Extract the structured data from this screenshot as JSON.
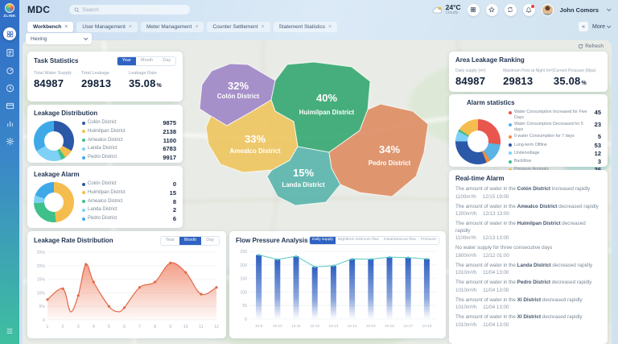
{
  "app": {
    "logo_text": "ZLINK",
    "title": "MDC",
    "search_placeholder": "Search"
  },
  "header": {
    "weather": {
      "temp": "24°C",
      "condition": "Cloudy"
    },
    "icons": [
      "apps-grid",
      "star",
      "sync",
      "notifications"
    ],
    "user": {
      "name": "John Comors"
    }
  },
  "sidebar": {
    "items": [
      {
        "icon": "dashboard",
        "active": true
      },
      {
        "icon": "tasks"
      },
      {
        "icon": "meter"
      },
      {
        "icon": "history"
      },
      {
        "icon": "billing"
      },
      {
        "icon": "reports"
      },
      {
        "icon": "settings"
      }
    ]
  },
  "tabs": {
    "items": [
      {
        "label": "Workbench"
      },
      {
        "label": "User Management"
      },
      {
        "label": "Meter Management"
      },
      {
        "label": "Counter Settlement"
      },
      {
        "label": "Statement Statistics"
      }
    ],
    "active": "Workbench",
    "more_label": "More"
  },
  "toolbar": {
    "region_select_value": "Hexing",
    "refresh_label": "Refresh"
  },
  "task_statistics": {
    "title": "Task Statistics",
    "range_options": [
      "Year",
      "Month",
      "Day"
    ],
    "range_active": "Year",
    "stats": [
      {
        "label": "Total Water Supply",
        "value": "84987",
        "unit": ""
      },
      {
        "label": "Total Leakage",
        "value": "29813",
        "unit": ""
      },
      {
        "label": "Leakage Rate",
        "value": "35.08",
        "unit": "%"
      }
    ]
  },
  "leakage_distribution": {
    "title": "Leakage Distribution",
    "items": [
      {
        "label": "Colón District",
        "value": 9875,
        "color": "#2b59a8"
      },
      {
        "label": "Huimilpan District",
        "value": 2138,
        "color": "#f5bd4e"
      },
      {
        "label": "Amealco District",
        "value": 1100,
        "color": "#3ec08a"
      },
      {
        "label": "Landa District",
        "value": 6783,
        "color": "#7fd0f5"
      },
      {
        "label": "Pedro District",
        "value": 9917,
        "color": "#3fa9e8"
      }
    ]
  },
  "leakage_alarm": {
    "title": "Leakage Alarm",
    "items": [
      {
        "label": "Colón District",
        "value": 0,
        "color": "#2b59a8"
      },
      {
        "label": "Huimilpan District",
        "value": 15,
        "color": "#f5bd4e"
      },
      {
        "label": "Amealco District",
        "value": 8,
        "color": "#3ec08a"
      },
      {
        "label": "Landa District",
        "value": 2,
        "color": "#7fd0f5"
      },
      {
        "label": "Pedro District",
        "value": 6,
        "color": "#3fa9e8"
      }
    ]
  },
  "map": {
    "districts": [
      {
        "name": "Colón District",
        "pct": "32%",
        "color": "#9c83c6"
      },
      {
        "name": "Huimilpan District",
        "pct": "40%",
        "color": "#2fa56d"
      },
      {
        "name": "Amealco District",
        "pct": "33%",
        "color": "#eec45a"
      },
      {
        "name": "Landa District",
        "pct": "15%",
        "color": "#54b3aa"
      },
      {
        "name": "Pedro District",
        "pct": "34%",
        "color": "#dd8a5f"
      }
    ]
  },
  "area_leakage_ranking": {
    "title": "Area Leakage Ranking",
    "stats": [
      {
        "label": "Daily supply (m³)",
        "value": "84987",
        "unit": ""
      },
      {
        "label": "Maximum Flow at Night (m³)",
        "value": "29813",
        "unit": ""
      },
      {
        "label": "Current Pressure (Mpa)",
        "value": "35.08",
        "unit": "%"
      }
    ]
  },
  "alarm_statistics": {
    "title": "Alarm statistics",
    "items": [
      {
        "label": "Water Consumption Increased for Five Days",
        "value": 45,
        "color": "#e8564e"
      },
      {
        "label": "Water Consumption Decreased for 5 days",
        "value": 23,
        "color": "#5ab4e5"
      },
      {
        "label": "0 water Consumption for 7 days",
        "value": 5,
        "color": "#f08c3c"
      },
      {
        "label": "Long-term Offline",
        "value": 53,
        "color": "#2b59a8"
      },
      {
        "label": "Undervoltage",
        "value": 12,
        "color": "#7fd0f5"
      },
      {
        "label": "Backflow",
        "value": 3,
        "color": "#3ec08a"
      },
      {
        "label": "Pressure Anomaly",
        "value": 26,
        "color": "#f5bd4e"
      }
    ]
  },
  "realtime_alarm": {
    "title": "Real-time Alarm",
    "items": [
      {
        "prefix": "The amount of water in the ",
        "district": "Colón District",
        "suffix": " increased rapidly",
        "flow": "1100m³/h",
        "time": "12/15 19:00"
      },
      {
        "prefix": "The amount of water in the ",
        "district": "Amealco District",
        "suffix": " decreased rapidly",
        "flow": "1200m³/h",
        "time": "12/13 13:00"
      },
      {
        "prefix": "The amount of water in the ",
        "district": "Huimilpan District",
        "suffix": " decreased rapidly",
        "flow": "1100m³/h",
        "time": "12/13 13:00"
      },
      {
        "prefix": "No water supply for three consecutive days",
        "district": "",
        "suffix": "",
        "flow": "1800m³/h",
        "time": "12/12 01:00"
      },
      {
        "prefix": "The amount of water in the ",
        "district": "Landa District",
        "suffix": " decreased rapidly",
        "flow": "1010m³/h",
        "time": "11/04 13:00"
      },
      {
        "prefix": "The amount of water in the ",
        "district": "Pedro District",
        "suffix": " decreased rapidly",
        "flow": "1010m³/h",
        "time": "11/04 13:00"
      },
      {
        "prefix": "The amount of water in the ",
        "district": "XI District",
        "suffix": " decreased rapidly",
        "flow": "1010m³/h",
        "time": "11/04 13:00"
      },
      {
        "prefix": "The amount of water in the ",
        "district": "XI District",
        "suffix": " decreased rapidly",
        "flow": "1010m³/h",
        "time": "11/04 13:00"
      }
    ]
  },
  "leakage_rate_chart": {
    "type": "area",
    "title": "Leakage Rate Distribution",
    "range_options": [
      "Year",
      "Month",
      "Day"
    ],
    "range_active": "Month",
    "points": [
      [
        1,
        7.5
      ],
      [
        2,
        11.5
      ],
      [
        2.5,
        3
      ],
      [
        3,
        9
      ],
      [
        3.5,
        20.5
      ],
      [
        4,
        14
      ],
      [
        5,
        5
      ],
      [
        5.6,
        3
      ],
      [
        6,
        4.5
      ],
      [
        7,
        12
      ],
      [
        8,
        14
      ],
      [
        9,
        21
      ],
      [
        10,
        17.5
      ],
      [
        11,
        9.5
      ],
      [
        12,
        12
      ]
    ],
    "xticks": [
      "1",
      "2",
      "3",
      "4",
      "5",
      "6",
      "7",
      "8",
      "9",
      "10",
      "11",
      "12"
    ],
    "yticks": [
      "0",
      "5%",
      "10%",
      "15%",
      "20%",
      "25%"
    ],
    "xlim": [
      1,
      12
    ],
    "ylim": [
      0,
      25
    ],
    "line_color": "#e2694a",
    "fill_color": "#f0876a"
  },
  "flow_pressure_chart": {
    "type": "bar+line",
    "title": "Flow Pressure Analysis",
    "series_options": [
      "Daily supply",
      "Nighttime minimum flow",
      "Instantaneous flow",
      "Pressure"
    ],
    "series_active": "Daily supply",
    "categories": [
      "10-9",
      "10-10",
      "10-11",
      "10-12",
      "10-13",
      "10-14",
      "10-15",
      "10-16",
      "10-17",
      "10-18"
    ],
    "values": [
      237,
      220,
      232,
      193,
      197,
      222,
      221,
      229,
      227,
      222
    ],
    "yticks": [
      0,
      50,
      100,
      150,
      200,
      250
    ],
    "ylim": [
      0,
      250
    ],
    "bar_color": "#2e5fc0",
    "line_color": "#57c7c2"
  }
}
